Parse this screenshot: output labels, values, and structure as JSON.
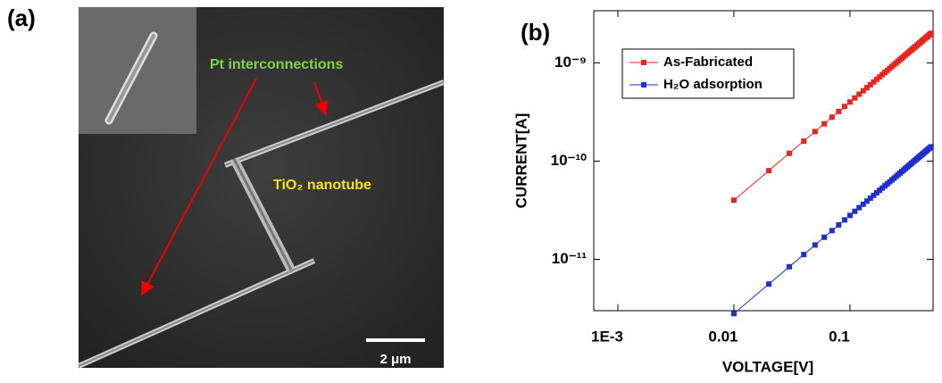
{
  "panel_a": {
    "label": "(a)",
    "annotation_wires": "Pt interconnections",
    "annotation_tube": "TiO₂ nanotube",
    "scale_bar": "2 μm"
  },
  "chart_data": {
    "type": "line",
    "panel_label": "(b)",
    "x_label": "VOLTAGE[V]",
    "y_label": "CURRENT[A]",
    "log_x": true,
    "log_y": true,
    "legend": "upper left",
    "xlim": [
      0.00062,
      0.52
    ],
    "ylim": [
      3e-12,
      3.4e-09
    ],
    "xticks": [
      {
        "value": 0.001,
        "label": "1E-3"
      },
      0.01,
      0.1
    ],
    "yticks": [
      {
        "value": 1e-11,
        "label": "10⁻¹¹"
      },
      {
        "value": 1e-10,
        "label": "10⁻¹⁰"
      },
      {
        "value": 1e-09,
        "label": "10⁻⁹"
      }
    ],
    "x": [
      0.01,
      0.02,
      0.03,
      0.04,
      0.05,
      0.06,
      0.07,
      0.08,
      0.09,
      0.1,
      0.11,
      0.12,
      0.13,
      0.14,
      0.15,
      0.16,
      0.17,
      0.18,
      0.19,
      0.2,
      0.21,
      0.22,
      0.23,
      0.24,
      0.25,
      0.26,
      0.27,
      0.28,
      0.29,
      0.3,
      0.31,
      0.32,
      0.33,
      0.34,
      0.35,
      0.36,
      0.37,
      0.38,
      0.39,
      0.4,
      0.41,
      0.42,
      0.43,
      0.44,
      0.45,
      0.46,
      0.47,
      0.48,
      0.49,
      0.5
    ],
    "series": [
      {
        "name": "As-Fabricated",
        "color": "#e8241c",
        "values": [
          4e-11,
          8e-11,
          1.2e-10,
          1.6e-10,
          2e-10,
          2.4e-10,
          2.8e-10,
          3.2e-10,
          3.6e-10,
          4e-10,
          4.4e-10,
          4.8e-10,
          5.2e-10,
          5.6e-10,
          6e-10,
          6.4e-10,
          6.8e-10,
          7.2e-10,
          7.6e-10,
          8e-10,
          8.4e-10,
          8.8e-10,
          9.2e-10,
          9.6e-10,
          1e-09,
          1.04e-09,
          1.08e-09,
          1.12e-09,
          1.16e-09,
          1.2e-09,
          1.24e-09,
          1.28e-09,
          1.32e-09,
          1.36e-09,
          1.4e-09,
          1.44e-09,
          1.48e-09,
          1.52e-09,
          1.56e-09,
          1.6e-09,
          1.64e-09,
          1.68e-09,
          1.72e-09,
          1.76e-09,
          1.8e-09,
          1.84e-09,
          1.88e-09,
          1.92e-09,
          1.96e-09,
          2e-09
        ]
      },
      {
        "name": "H₂O adsorption",
        "color": "#1f2fd0",
        "values": [
          2.8e-12,
          5.6e-12,
          8.4e-12,
          1.12e-11,
          1.4e-11,
          1.68e-11,
          1.96e-11,
          2.24e-11,
          2.52e-11,
          2.8e-11,
          3.08e-11,
          3.36e-11,
          3.64e-11,
          3.92e-11,
          4.2e-11,
          4.48e-11,
          4.76e-11,
          5.04e-11,
          5.32e-11,
          5.6e-11,
          5.88e-11,
          6.16e-11,
          6.44e-11,
          6.72e-11,
          7e-11,
          7.28e-11,
          7.56e-11,
          7.84e-11,
          8.12e-11,
          8.4e-11,
          8.68e-11,
          8.96e-11,
          9.24e-11,
          9.52e-11,
          9.8e-11,
          1.008e-10,
          1.036e-10,
          1.064e-10,
          1.092e-10,
          1.12e-10,
          1.148e-10,
          1.176e-10,
          1.204e-10,
          1.232e-10,
          1.26e-10,
          1.288e-10,
          1.316e-10,
          1.344e-10,
          1.372e-10,
          1.4e-10
        ]
      }
    ]
  }
}
